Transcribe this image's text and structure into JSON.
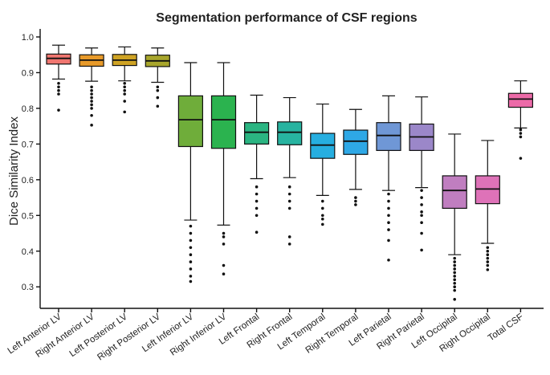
{
  "chart_data": {
    "type": "box",
    "title": "Segmentation performance of CSF regions",
    "xlabel": "",
    "ylabel": "Dice Similarity Index",
    "ylim": [
      0.26,
      1.0
    ],
    "yticks": [
      0.3,
      0.4,
      0.5,
      0.6,
      0.7,
      0.8,
      0.9,
      1.0
    ],
    "ytick_labels": [
      "0.3",
      "0.4",
      "0.5",
      "0.6",
      "0.7",
      "0.8",
      "0.9",
      "1.0"
    ],
    "grid": false,
    "legend": "none",
    "categories": [
      "Left Anterior LV",
      "Right Anterior LV",
      "Left Posterior LV",
      "Right Posterior LV",
      "Left Inferior LV",
      "Right Inferior LV",
      "Left Frontal",
      "Right Frontal",
      "Left Temporal",
      "Right Temporal",
      "Left Parietal",
      "Right Parietal",
      "Left Occipital",
      "Right Occipital",
      "Total CSF"
    ],
    "colors": [
      "#f07670",
      "#e89a2a",
      "#cfa324",
      "#a8a62c",
      "#6fad3a",
      "#2bb34f",
      "#2bb582",
      "#27b3a0",
      "#26aee0",
      "#2ea8e6",
      "#6f97d6",
      "#9b87c9",
      "#c07ec0",
      "#de72b8",
      "#ec6aa8"
    ],
    "boxes": [
      {
        "whislo": 0.882,
        "q1": 0.924,
        "med": 0.94,
        "q3": 0.952,
        "whishi": 0.977,
        "fliers": [
          0.795,
          0.84,
          0.85,
          0.86,
          0.87
        ]
      },
      {
        "whislo": 0.876,
        "q1": 0.918,
        "med": 0.935,
        "q3": 0.95,
        "whishi": 0.969,
        "fliers": [
          0.753,
          0.78,
          0.8,
          0.81,
          0.82,
          0.83,
          0.84,
          0.85,
          0.86
        ]
      },
      {
        "whislo": 0.877,
        "q1": 0.92,
        "med": 0.935,
        "q3": 0.951,
        "whishi": 0.972,
        "fliers": [
          0.79,
          0.82,
          0.84,
          0.85,
          0.86,
          0.87
        ]
      },
      {
        "whislo": 0.873,
        "q1": 0.917,
        "med": 0.933,
        "q3": 0.949,
        "whishi": 0.969,
        "fliers": [
          0.806,
          0.83,
          0.85,
          0.86
        ]
      },
      {
        "whislo": 0.487,
        "q1": 0.693,
        "med": 0.768,
        "q3": 0.835,
        "whishi": 0.928,
        "fliers": [
          0.315,
          0.33,
          0.35,
          0.37,
          0.39,
          0.41,
          0.43,
          0.45,
          0.47
        ]
      },
      {
        "whislo": 0.473,
        "q1": 0.688,
        "med": 0.768,
        "q3": 0.835,
        "whishi": 0.928,
        "fliers": [
          0.336,
          0.36,
          0.42,
          0.44,
          0.45
        ]
      },
      {
        "whislo": 0.603,
        "q1": 0.7,
        "med": 0.733,
        "q3": 0.76,
        "whishi": 0.837,
        "fliers": [
          0.453,
          0.5,
          0.52,
          0.54,
          0.56,
          0.58
        ]
      },
      {
        "whislo": 0.606,
        "q1": 0.698,
        "med": 0.733,
        "q3": 0.762,
        "whishi": 0.83,
        "fliers": [
          0.42,
          0.44,
          0.52,
          0.54,
          0.56,
          0.58
        ]
      },
      {
        "whislo": 0.556,
        "q1": 0.66,
        "med": 0.697,
        "q3": 0.73,
        "whishi": 0.812,
        "fliers": [
          0.475,
          0.49,
          0.5,
          0.52,
          0.54
        ]
      },
      {
        "whislo": 0.573,
        "q1": 0.671,
        "med": 0.708,
        "q3": 0.739,
        "whishi": 0.797,
        "fliers": [
          0.53,
          0.54,
          0.55
        ]
      },
      {
        "whislo": 0.57,
        "q1": 0.682,
        "med": 0.724,
        "q3": 0.76,
        "whishi": 0.835,
        "fliers": [
          0.375,
          0.43,
          0.46,
          0.48,
          0.5,
          0.52,
          0.54,
          0.56
        ]
      },
      {
        "whislo": 0.578,
        "q1": 0.682,
        "med": 0.72,
        "q3": 0.756,
        "whishi": 0.832,
        "fliers": [
          0.403,
          0.45,
          0.48,
          0.5,
          0.51,
          0.53,
          0.55,
          0.57
        ]
      },
      {
        "whislo": 0.39,
        "q1": 0.52,
        "med": 0.57,
        "q3": 0.611,
        "whishi": 0.728,
        "fliers": [
          0.265,
          0.29,
          0.3,
          0.31,
          0.32,
          0.33,
          0.34,
          0.35,
          0.36,
          0.37,
          0.38
        ]
      },
      {
        "whislo": 0.422,
        "q1": 0.533,
        "med": 0.574,
        "q3": 0.611,
        "whishi": 0.71,
        "fliers": [
          0.348,
          0.36,
          0.37,
          0.38,
          0.39,
          0.4,
          0.41
        ]
      },
      {
        "whislo": 0.745,
        "q1": 0.803,
        "med": 0.826,
        "q3": 0.842,
        "whishi": 0.877,
        "fliers": [
          0.66,
          0.72,
          0.73,
          0.74
        ]
      }
    ]
  }
}
